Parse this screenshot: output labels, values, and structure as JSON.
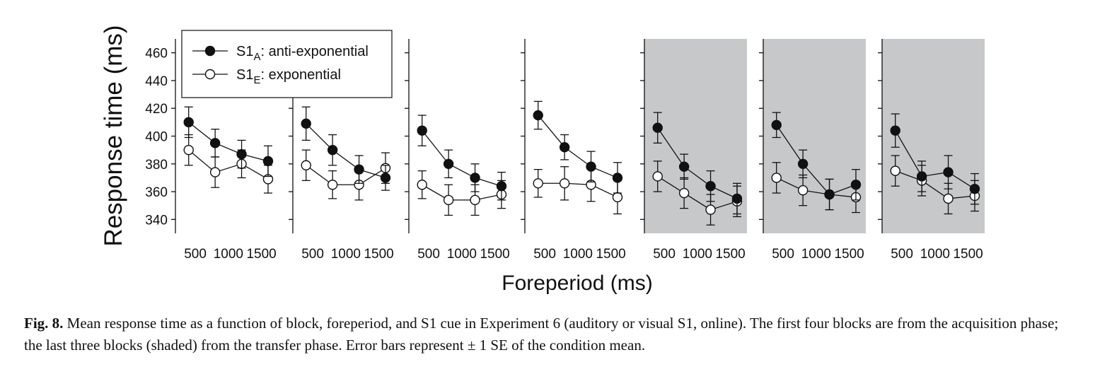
{
  "chart_data": {
    "type": "line",
    "title": "",
    "xlabel": "Foreperiod (ms)",
    "ylabel": "Response time (ms)",
    "x": [
      400,
      800,
      1200,
      1600
    ],
    "x_ticks": [
      500,
      1000,
      1500
    ],
    "x_tick_labels": [
      "500",
      "1000",
      "1500"
    ],
    "xlim": [
      200,
      1750
    ],
    "ylim": [
      330,
      470
    ],
    "y_ticks": [
      340,
      360,
      380,
      400,
      420,
      440,
      460
    ],
    "y_tick_labels": [
      "340",
      "360",
      "380",
      "400",
      "420",
      "440",
      "460"
    ],
    "grid": false,
    "legend_position": "top-left",
    "series_meta": [
      {
        "key": "A",
        "name_base": "S1",
        "name_sub": "A",
        "name_rest": ": anti-exponential",
        "marker": "filled-circle",
        "color": "#111111"
      },
      {
        "key": "E",
        "name_base": "S1",
        "name_sub": "E",
        "name_rest": ": exponential",
        "marker": "open-circle",
        "color": "#ffffff"
      }
    ],
    "panels": [
      {
        "block": 1,
        "phase": "acquisition",
        "shaded": false,
        "A": {
          "values": [
            410,
            395,
            387,
            382
          ],
          "se": [
            11,
            10,
            10,
            11
          ]
        },
        "E": {
          "values": [
            390,
            374,
            380,
            369
          ],
          "se": [
            11,
            11,
            10,
            10
          ]
        }
      },
      {
        "block": 2,
        "phase": "acquisition",
        "shaded": false,
        "A": {
          "values": [
            409,
            390,
            376,
            370
          ],
          "se": [
            12,
            11,
            10,
            9
          ]
        },
        "E": {
          "values": [
            379,
            365,
            365,
            377
          ],
          "se": [
            11,
            10,
            11,
            11
          ]
        }
      },
      {
        "block": 3,
        "phase": "acquisition",
        "shaded": false,
        "A": {
          "values": [
            404,
            380,
            370,
            364
          ],
          "se": [
            11,
            10,
            10,
            10
          ]
        },
        "E": {
          "values": [
            365,
            354,
            354,
            358
          ],
          "se": [
            10,
            11,
            11,
            10
          ]
        }
      },
      {
        "block": 4,
        "phase": "acquisition",
        "shaded": false,
        "A": {
          "values": [
            415,
            392,
            378,
            370
          ],
          "se": [
            10,
            9,
            11,
            11
          ]
        },
        "E": {
          "values": [
            366,
            366,
            365,
            356
          ],
          "se": [
            10,
            12,
            12,
            12
          ]
        }
      },
      {
        "block": 5,
        "phase": "transfer",
        "shaded": true,
        "A": {
          "values": [
            406,
            378,
            364,
            355
          ],
          "se": [
            11,
            9,
            11,
            11
          ]
        },
        "E": {
          "values": [
            371,
            359,
            347,
            353
          ],
          "se": [
            11,
            11,
            11,
            11
          ]
        }
      },
      {
        "block": 6,
        "phase": "transfer",
        "shaded": true,
        "A": {
          "values": [
            408,
            380,
            358,
            365
          ],
          "se": [
            9,
            10,
            11,
            11
          ]
        },
        "E": {
          "values": [
            370,
            361,
            358,
            356
          ],
          "se": [
            11,
            11,
            11,
            11
          ]
        }
      },
      {
        "block": 7,
        "phase": "transfer",
        "shaded": true,
        "A": {
          "values": [
            404,
            371,
            374,
            362
          ],
          "se": [
            12,
            11,
            12,
            11
          ]
        },
        "E": {
          "values": [
            375,
            368,
            355,
            357
          ],
          "se": [
            11,
            11,
            11,
            11
          ]
        }
      }
    ]
  },
  "caption": {
    "label": "Fig. 8.",
    "text": " Mean response time as a function of block, foreperiod, and S1 cue in Experiment 6 (auditory or visual S1, online). The first four blocks are from the acquisition phase; the last three blocks (shaded) from the transfer phase. Error bars represent ± 1 SE of the condition mean."
  },
  "colors": {
    "shade": "#c7c8ca",
    "ink": "#111111",
    "background": "#ffffff"
  }
}
